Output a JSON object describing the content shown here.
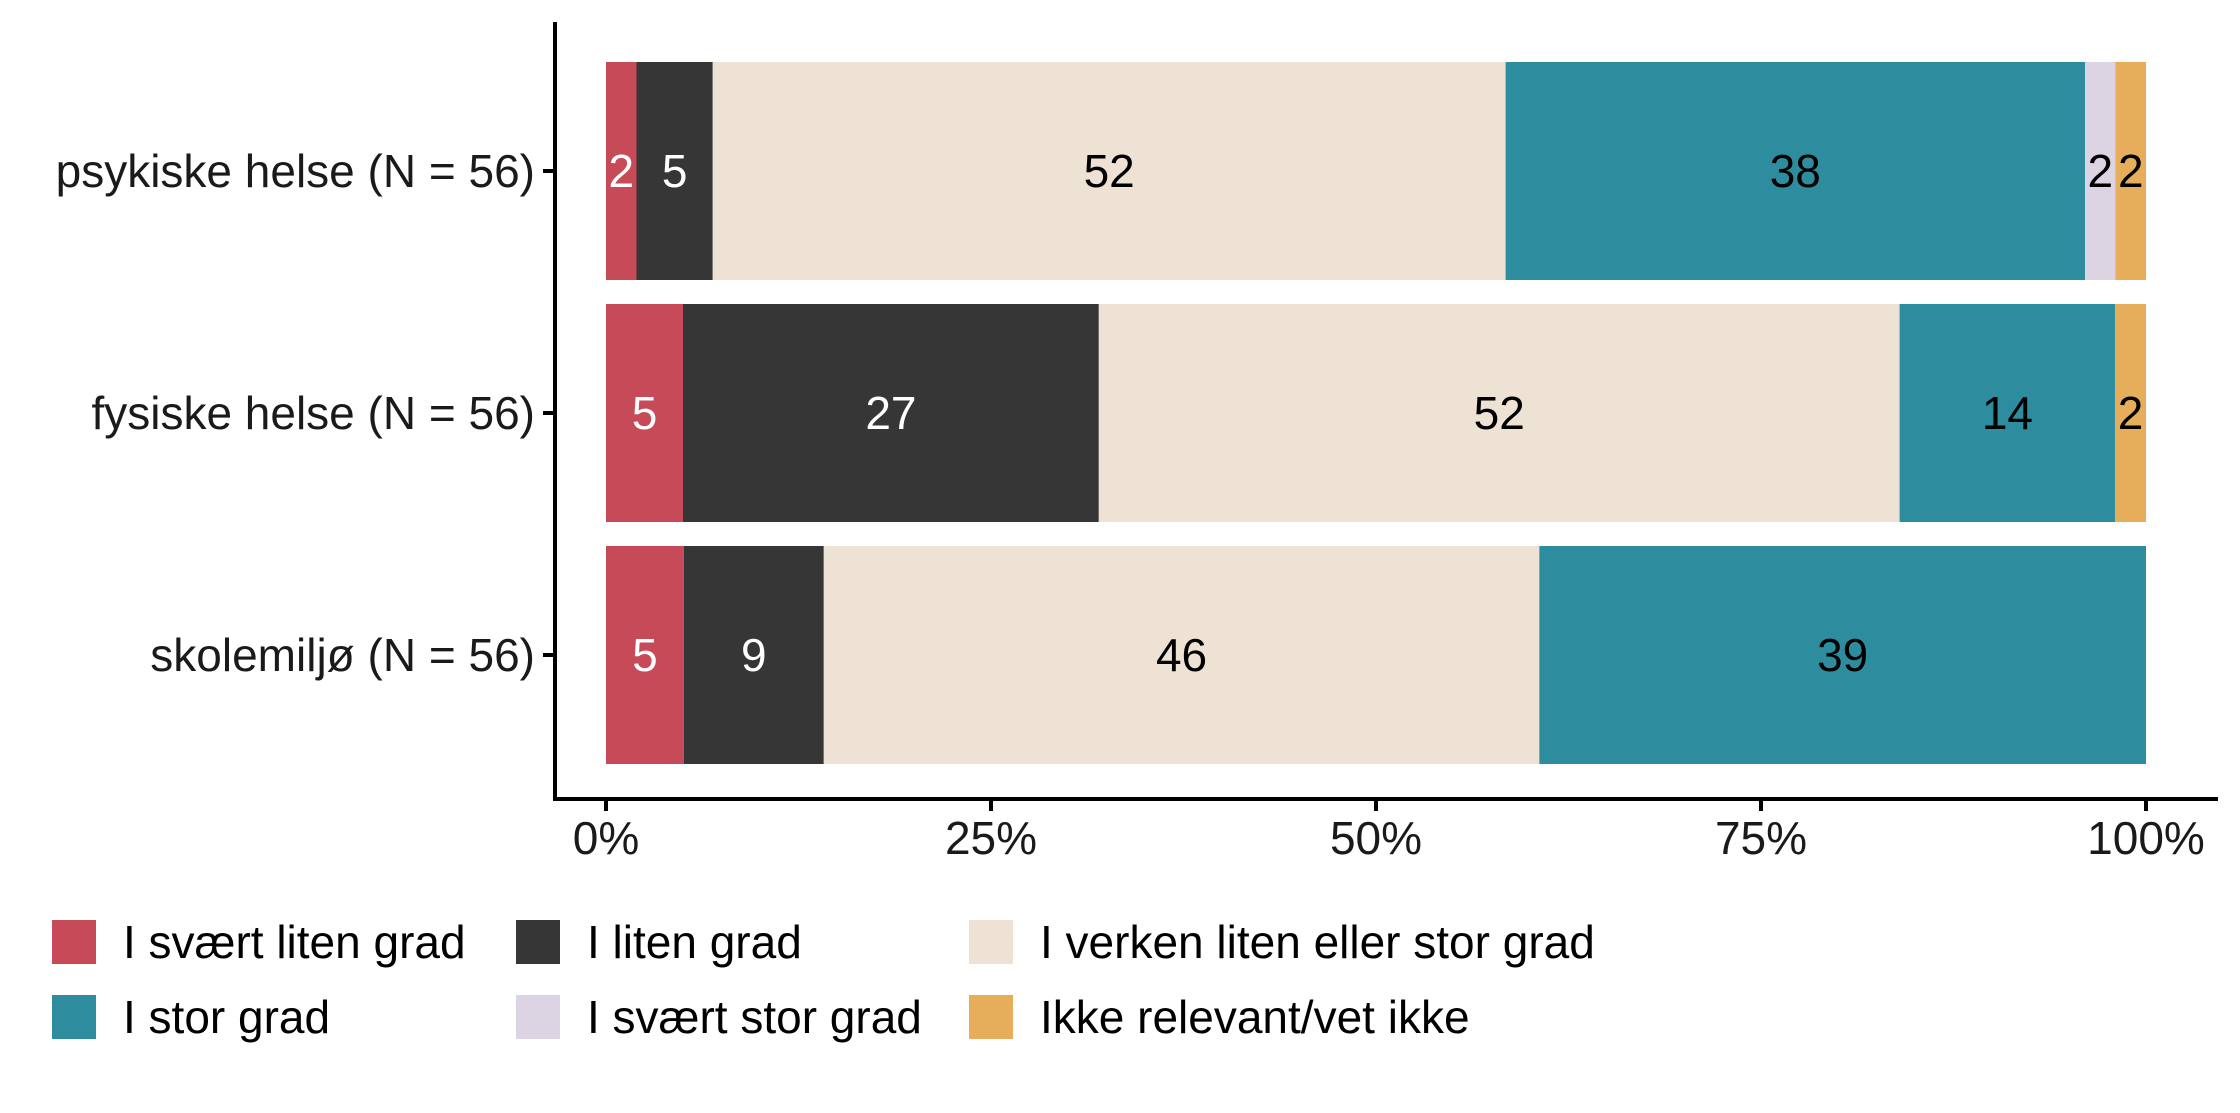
{
  "chart_data": {
    "type": "bar",
    "orientation": "horizontal",
    "stacked": true,
    "percent_scale": true,
    "categories": [
      "psykiske helse (N = 56)",
      "fysiske helse (N = 56)",
      "skolemiljø (N = 56)"
    ],
    "series": [
      {
        "name": "I svært liten grad",
        "color": "#C64A58",
        "label_color": "#ffffff",
        "values": [
          2,
          5,
          5
        ]
      },
      {
        "name": "I liten grad",
        "color": "#363636",
        "label_color": "#ffffff",
        "values": [
          5,
          27,
          9
        ]
      },
      {
        "name": "I verken liten eller stor grad",
        "color": "#EDE2D3",
        "label_color": "#000000",
        "values": [
          52,
          52,
          46
        ]
      },
      {
        "name": "I stor grad",
        "color": "#2E8C9F",
        "label_color": "#000000",
        "values": [
          38,
          14,
          39
        ]
      },
      {
        "name": "I svært stor grad",
        "color": "#DCD3E3",
        "label_color": "#000000",
        "values": [
          2,
          0,
          0
        ]
      },
      {
        "name": "Ikke relevant/vet ikke",
        "color": "#E6AE5B",
        "label_color": "#000000",
        "values": [
          2,
          2,
          0
        ]
      }
    ],
    "x_ticks": [
      "0%",
      "25%",
      "50%",
      "75%",
      "100%"
    ],
    "xlim": [
      0,
      100
    ],
    "title": "",
    "xlabel": "",
    "ylabel": "",
    "grid": false,
    "legend_position": "bottom-left"
  }
}
